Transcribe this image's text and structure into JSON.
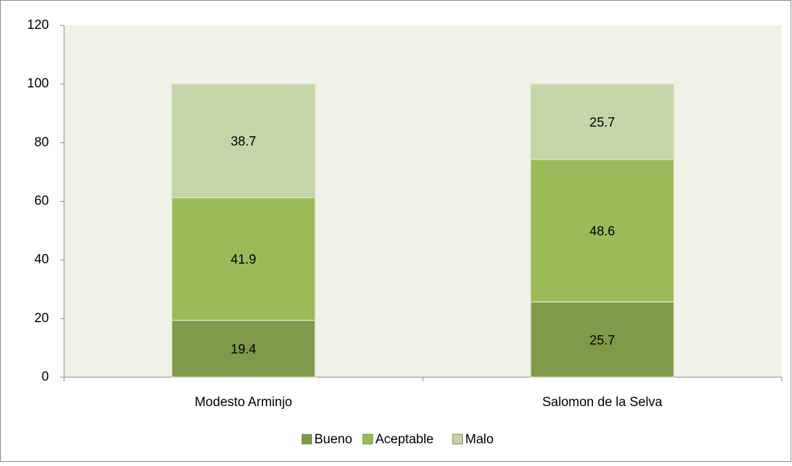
{
  "chart_data": {
    "type": "stacked_bar",
    "categories": [
      "Modesto Arminjo",
      "Salomon de la Selva"
    ],
    "series": [
      {
        "name": "Bueno",
        "color": "#7f9a48",
        "values": [
          19.4,
          25.7
        ]
      },
      {
        "name": "Aceptable",
        "color": "#9bbb59",
        "values": [
          41.9,
          48.6
        ]
      },
      {
        "name": "Malo",
        "color": "#c4d5a9",
        "values": [
          38.7,
          25.7
        ]
      }
    ],
    "ylim": [
      0,
      120
    ],
    "yticks": [
      0,
      20,
      40,
      60,
      80,
      100,
      120
    ],
    "legend": "bottom"
  }
}
